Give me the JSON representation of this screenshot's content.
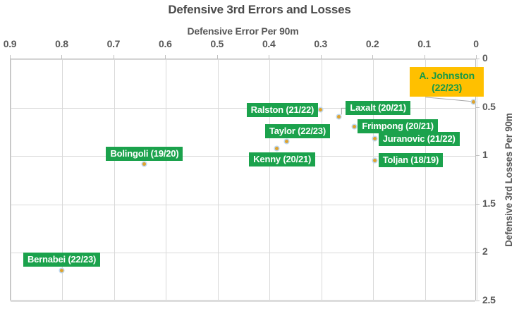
{
  "title": "Defensive 3rd Errors and Losses",
  "x_axis": {
    "title": "Defensive Error Per 90m",
    "tick_labels": [
      "0.9",
      "0.8",
      "0.7",
      "0.6",
      "0.5",
      "0.4",
      "0.3",
      "0.2",
      "0.1",
      "0"
    ],
    "tick_values": [
      0.9,
      0.8,
      0.7,
      0.6,
      0.5,
      0.4,
      0.3,
      0.2,
      0.1,
      0
    ],
    "min": 0,
    "max": 0.9,
    "reversed": true
  },
  "y_axis": {
    "title": "Defensive 3rd Losses Per 90m",
    "tick_labels": [
      "0",
      "0.5",
      "1",
      "1.5",
      "2",
      "2.5"
    ],
    "tick_values": [
      0,
      0.5,
      1,
      1.5,
      2,
      2.5
    ],
    "min": 0,
    "max": 2.5,
    "increases_downward": true
  },
  "colors": {
    "label_green": "#1BA24C",
    "highlight_gold": "#FFC000",
    "highlight_text_green": "#169A47",
    "marker_fill": "#DFA32E",
    "marker_ring": "#BDD7EE",
    "grid": "#D9D9D9",
    "axis_border": "#BFBFBF",
    "text_gray": "#595959",
    "title_gray": "#4A4A4A",
    "leader_line": "#A6A6A6"
  },
  "chart_data": {
    "type": "scatter",
    "title": "Defensive 3rd Errors and Losses",
    "xlabel": "Defensive Error Per 90m",
    "ylabel": "Defensive 3rd Losses Per 90m",
    "xlim": [
      0.9,
      0
    ],
    "ylim": [
      0,
      2.5
    ],
    "grid": true,
    "legend": "none",
    "points": [
      {
        "label": "A. Johnston (22/23)",
        "label_lines": [
          "A. Johnston",
          "(22/23)"
        ],
        "x": 0.005,
        "y": 0.45,
        "highlight": true,
        "anchor": "callout-left-above"
      },
      {
        "label": "Ralston (21/22)",
        "x": 0.3,
        "y": 0.53,
        "anchor": "left"
      },
      {
        "label": "Laxalt (20/21)",
        "x": 0.265,
        "y": 0.6,
        "anchor": "elbow-right-above"
      },
      {
        "label": "Frimpong (20/21)",
        "x": 0.235,
        "y": 0.7,
        "anchor": "right"
      },
      {
        "label": "Taylor (22/23)",
        "x": 0.365,
        "y": 0.86,
        "anchor": "above",
        "dx": 15
      },
      {
        "label": "Kenny (20/21)",
        "x": 0.385,
        "y": 0.93,
        "anchor": "below",
        "dx": 8
      },
      {
        "label": "Juranovic (21/22)",
        "x": 0.195,
        "y": 0.83,
        "anchor": "right"
      },
      {
        "label": "Toljan (18/19)",
        "x": 0.195,
        "y": 1.05,
        "anchor": "right"
      },
      {
        "label": "Bolingoli (19/20)",
        "x": 0.64,
        "y": 1.09,
        "anchor": "above"
      },
      {
        "label": "Bernabei (22/23)",
        "x": 0.8,
        "y": 2.19,
        "anchor": "above"
      }
    ]
  }
}
